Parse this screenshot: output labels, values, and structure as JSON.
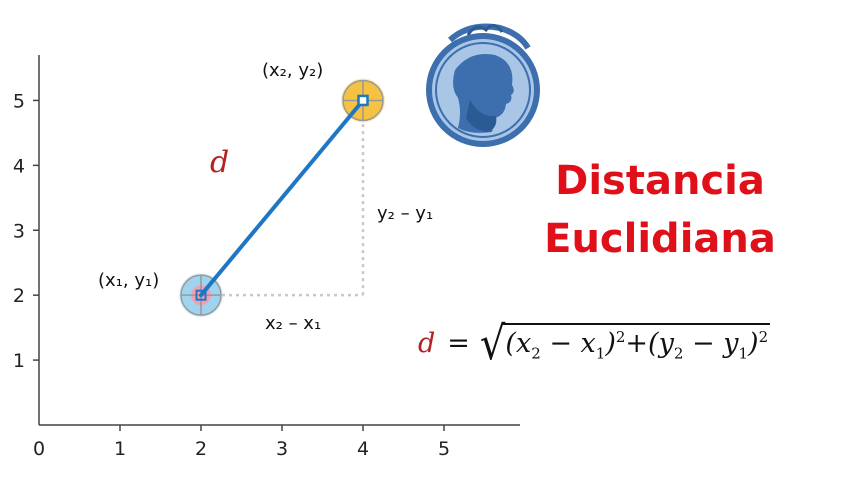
{
  "chart": {
    "x_ticks": [
      "0",
      "1",
      "2",
      "3",
      "4",
      "5"
    ],
    "y_ticks": [
      "1",
      "2",
      "3",
      "4",
      "5"
    ],
    "point1_label": "(x₁, y₁)",
    "point2_label": "(x₂, y₂)",
    "dx_label": "x₂ – x₁",
    "dy_label": "y₂ – y₁",
    "distance_symbol": "d"
  },
  "chart_data": {
    "type": "scatter",
    "x": [
      2,
      4
    ],
    "y": [
      2,
      5
    ],
    "xlim": [
      0,
      6
    ],
    "ylim": [
      0,
      5.7
    ],
    "segment_color": "#1f77c4",
    "point1_color": "#9fd3f0",
    "point2_color": "#f5c242",
    "guide_color": "#c8c8c8"
  },
  "title": {
    "line1": "Distancia",
    "line2": "Euclidiana",
    "color": "#e0101a"
  },
  "formula": {
    "lhs": "d",
    "equals": "=",
    "open1": "(",
    "x2": "x",
    "x2_sub": "2",
    "minus1": " − ",
    "x1": "x",
    "x1_sub": "1",
    "close1": ")",
    "sq1": "2",
    "plus": "+",
    "open2": "(",
    "y2": "y",
    "y2_sub": "2",
    "minus2": " − ",
    "y1": "y",
    "y1_sub": "1",
    "close2": ")",
    "sq2": "2"
  },
  "icons": {
    "medallion": "euclid-portrait-coin-icon"
  }
}
